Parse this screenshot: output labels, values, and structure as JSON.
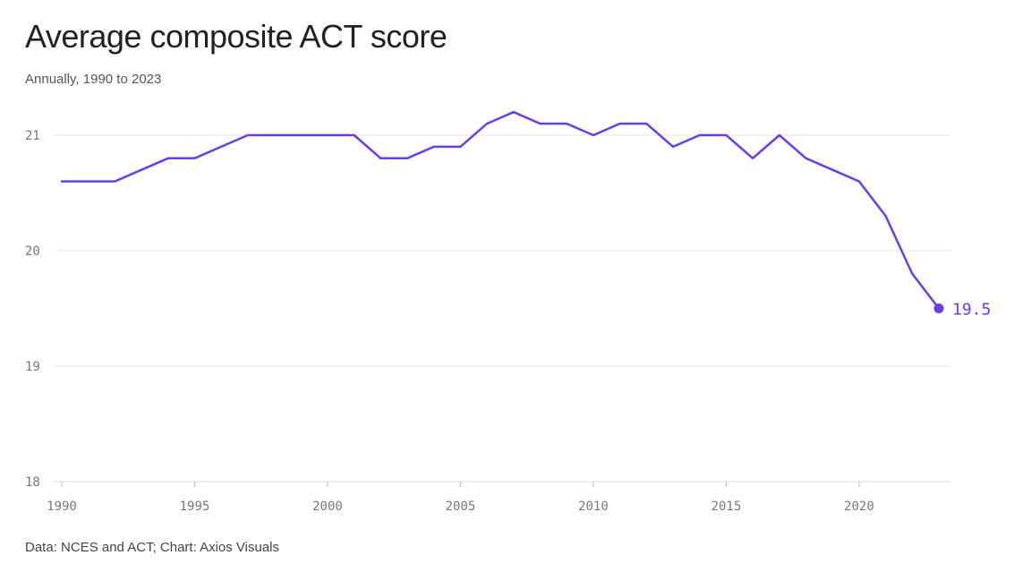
{
  "chart_data": {
    "type": "line",
    "title": "Average composite ACT score",
    "subtitle": "Annually, 1990 to 2023",
    "source": "Data: NCES and ACT; Chart: Axios Visuals",
    "xlabel": "",
    "ylabel": "",
    "xlim": [
      1990,
      2023
    ],
    "ylim": [
      18,
      21.3
    ],
    "x_ticks": [
      1990,
      1995,
      2000,
      2005,
      2010,
      2015,
      2020
    ],
    "y_ticks": [
      18,
      19,
      20,
      21
    ],
    "grid": true,
    "line_color": "#6a3ee6",
    "end_label": "19.5",
    "x": [
      1990,
      1991,
      1992,
      1993,
      1994,
      1995,
      1996,
      1997,
      1998,
      1999,
      2000,
      2001,
      2002,
      2003,
      2004,
      2005,
      2006,
      2007,
      2008,
      2009,
      2010,
      2011,
      2012,
      2013,
      2014,
      2015,
      2016,
      2017,
      2018,
      2019,
      2020,
      2021,
      2022,
      2023
    ],
    "values": [
      20.6,
      20.6,
      20.6,
      20.7,
      20.8,
      20.8,
      20.9,
      21.0,
      21.0,
      21.0,
      21.0,
      21.0,
      20.8,
      20.8,
      20.9,
      20.9,
      21.1,
      21.2,
      21.1,
      21.1,
      21.0,
      21.1,
      21.1,
      20.9,
      21.0,
      21.0,
      20.8,
      21.0,
      20.8,
      20.7,
      20.6,
      20.3,
      19.8,
      19.5
    ]
  }
}
